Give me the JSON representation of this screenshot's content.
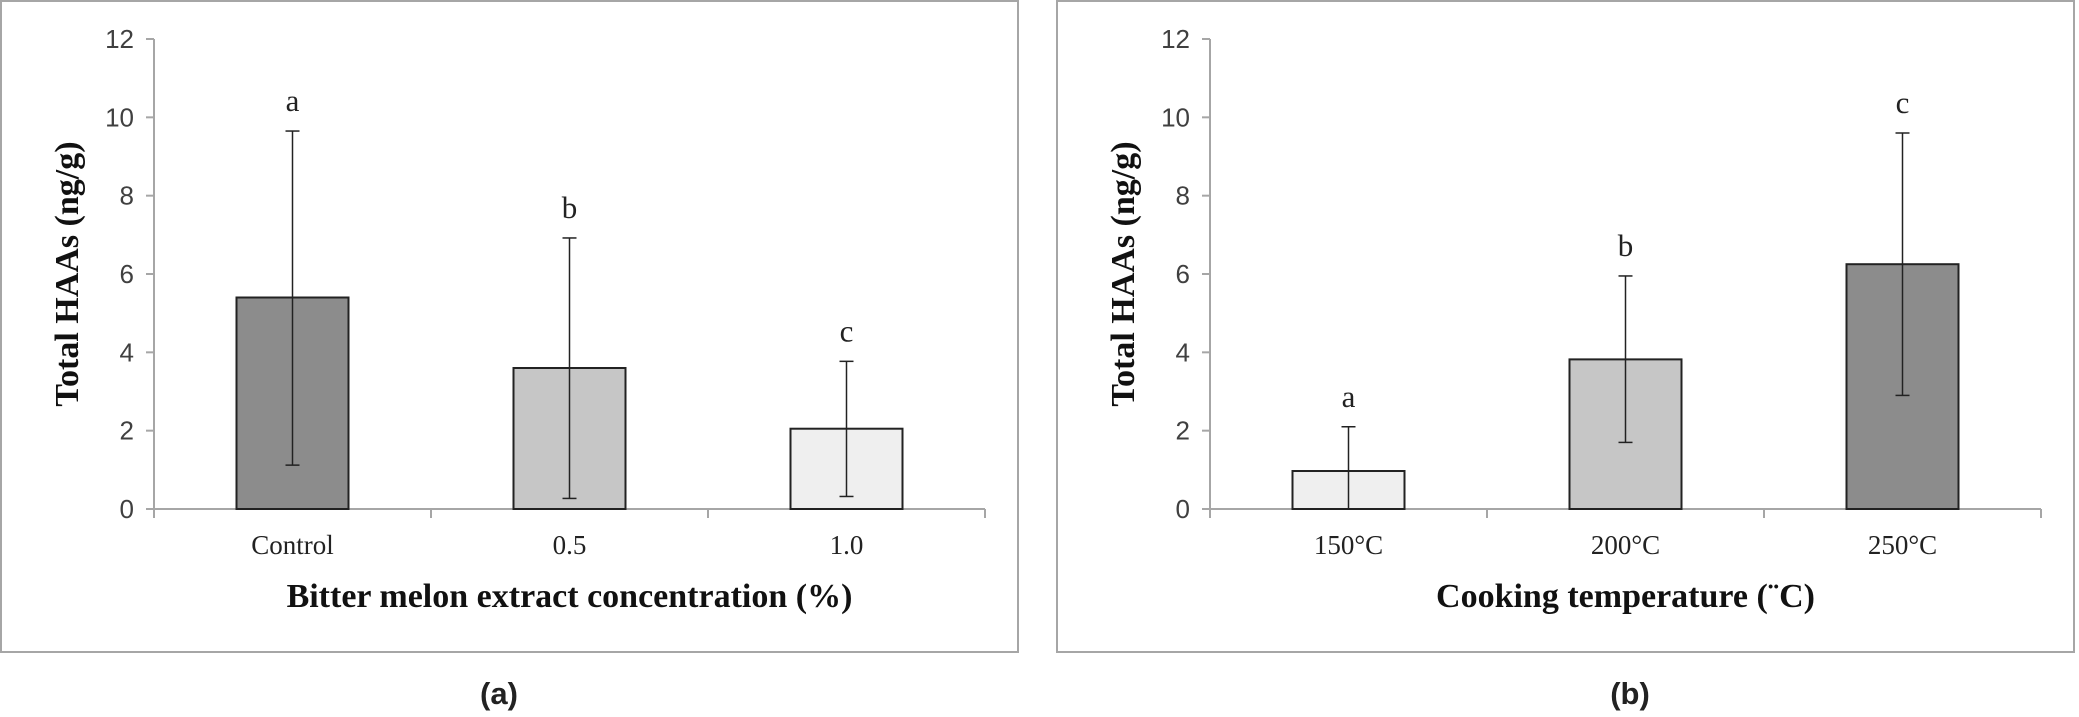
{
  "chart_data": [
    {
      "type": "bar",
      "panel_label": "(a)",
      "xlabel": "Bitter melon extract concentration (%)",
      "ylabel": "Total HAAs (ng/g)",
      "ylim": [
        0,
        12
      ],
      "yticks": [
        "0",
        "2",
        "4",
        "6",
        "8",
        "10",
        "12"
      ],
      "categories": [
        "Control",
        "0.5",
        "1.0"
      ],
      "values": [
        5.4,
        3.6,
        2.05
      ],
      "error_upper": [
        9.65,
        6.92,
        3.77
      ],
      "error_lower": [
        1.12,
        0.27,
        0.32
      ],
      "significance": [
        "a",
        "b",
        "c"
      ],
      "bar_colors": [
        "#8c8c8c",
        "#c6c6c6",
        "#efefef"
      ],
      "grid": false
    },
    {
      "type": "bar",
      "panel_label": "(b)",
      "xlabel": "Cooking temperature (¨C)",
      "ylabel": "Total HAAs (ng/g)",
      "ylim": [
        0,
        12
      ],
      "yticks": [
        "0",
        "2",
        "4",
        "6",
        "8",
        "10",
        "12"
      ],
      "categories": [
        "150°C",
        "200°C",
        "250°C"
      ],
      "values": [
        0.97,
        3.82,
        6.25
      ],
      "error_upper": [
        2.1,
        5.95,
        9.6
      ],
      "error_lower": [
        0.0,
        1.7,
        2.9
      ],
      "significance": [
        "a",
        "b",
        "c"
      ],
      "bar_colors": [
        "#efefef",
        "#c6c6c6",
        "#8c8c8c"
      ],
      "grid": false
    }
  ]
}
